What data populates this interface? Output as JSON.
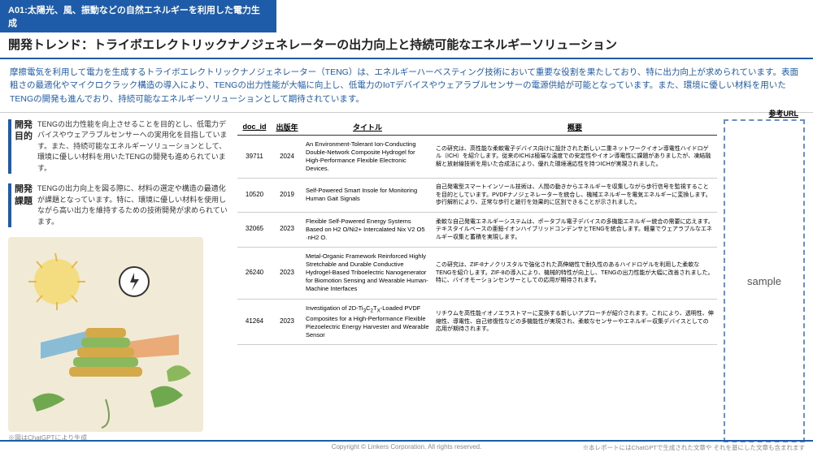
{
  "header": {
    "category": "A01:太陽光、風、振動などの自然エネルギーを利用した電力生成",
    "title": "開発トレンド：トライボエレクトリックナノジェネレーターの出力向上と持続可能なエネルギーソリューション"
  },
  "summary": "摩擦電気を利用して電力を生成するトライボエレクトリックナノジェネレーター（TENG）は、エネルギーハーベスティング技術において重要な役割を果たしており、特に出力向上が求められています。表面粗さの最適化やマイクロクラック構造の導入により、TENGの出力性能が大幅に向上し、低電力のIoTデバイスやウェアラブルセンサーの電源供給が可能となっています。また、環境に優しい材料を用いたTENGの開発も進んでおり、持続可能なエネルギーソリューションとして期待されています。",
  "sections": {
    "purpose": {
      "label": "開発目的",
      "text": "TENGの出力性能を向上させることを目的とし、低電力デバイスやウェアラブルセンサーへの実用化を目指しています。また、持続可能なエネルギーソリューションとして、環境に優しい材料を用いたTENGの開発も進められています。"
    },
    "challenge": {
      "label": "開発課題",
      "text": "TENGの出力向上を図る際に、材料の選定や構造の最適化が課題となっています。特に、環境に優しい材料を使用しながら高い出力を維持するための技術開発が求められています。"
    }
  },
  "illustration_caption": "※図はChatGPTにより生成",
  "table": {
    "headers": [
      "doc_id",
      "出版年",
      "タイトル",
      "概要",
      "参考URL"
    ],
    "rows": [
      {
        "doc_id": "39711",
        "year": "2024",
        "title": "An Environment-Tolerant Ion-Conducting Double-Network Composite Hydrogel for High-Performance Flexible Electronic Devices.",
        "desc": "この研究は、高性能な柔軟電子デバイス向けに設計された新しい二重ネットワークイオン導電性ハイドロゲル（ICH）を紹介します。従来のICHは極端な温度での安定性やイオン導電性に課題がありましたが、凍結融解と放射線技術を用いた合成法により、優れた環境適応性を持つICHが実現されました。"
      },
      {
        "doc_id": "10520",
        "year": "2019",
        "title": "Self-Powered Smart Insole for Monitoring Human Gait Signals",
        "desc": "自己発電型スマートインソール技術は、人間の動きからエネルギーを収集しながら歩行信号を監視することを目的としています。PVDFナノジェネレーターを統合し、機械エネルギーを電気エネルギーに変換します。歩行解析により、正常な歩行と跛行を効果的に区別できることが示されました。"
      },
      {
        "doc_id": "32065",
        "year": "2023",
        "title": "Flexible Self-Powered Energy Systems Based on H2 O/Ni2+ Intercalated Nix V2 O5 ·nH2 O.",
        "desc": "柔軟な自己発電エネルギーシステムは、ポータブル電子デバイスの多機能エネルギー統合の需要に応えます。テキスタイルベースの亜鉛イオンハイブリッドコンデンサとTENGを統合します。軽量でウェアラブルなエネルギー収集と蓄積を実現します。"
      },
      {
        "doc_id": "26240",
        "year": "2023",
        "title": "Metal-Organic Framework Reinforced Highly Stretchable and Durable Conductive Hydrogel-Based Triboelectric Nanogenerator for Biomotion Sensing and Wearable Human-Machine Interfaces",
        "desc": "この研究は、ZIF-8ナノクリスタルで強化された高伸縮性で耐久性のあるハイドロゲルを利用した柔軟なTENGを紹介します。ZIF-8の導入により、機械的特性が向上し、TENGの出力性能が大幅に改善されました。特に、バイオモーションセンサーとしての応用が期待されます。"
      },
      {
        "doc_id": "41264",
        "year": "2023",
        "title": "Investigation of 2D-Ti<sub>3</sub>C<sub>2</sub>T<sub>X</sub>-Loaded PVDF Composites for a High-Performance Flexible Piezoelectric Energy Harvester and Wearable Sensor",
        "desc": "リチウムを高性能イオノエラストマーに変換する新しいアプローチが紹介されます。これにより、透明性、伸縮性、導電性、自己修復性などの多機能性が実現され、柔軟なセンサーやエネルギー収集デバイスとしての応用が期待されます。"
      }
    ]
  },
  "sample_label": "sample",
  "footer": {
    "copyright": "Copyright © Linkers Corporation. All rights reserved.",
    "note": "※本レポートにはChatGPTで生成された文章や それを基にした文章も含まれます"
  },
  "colors": {
    "primary": "#1e5ba8",
    "text": "#222222",
    "border_dash": "#6a8fc4"
  }
}
